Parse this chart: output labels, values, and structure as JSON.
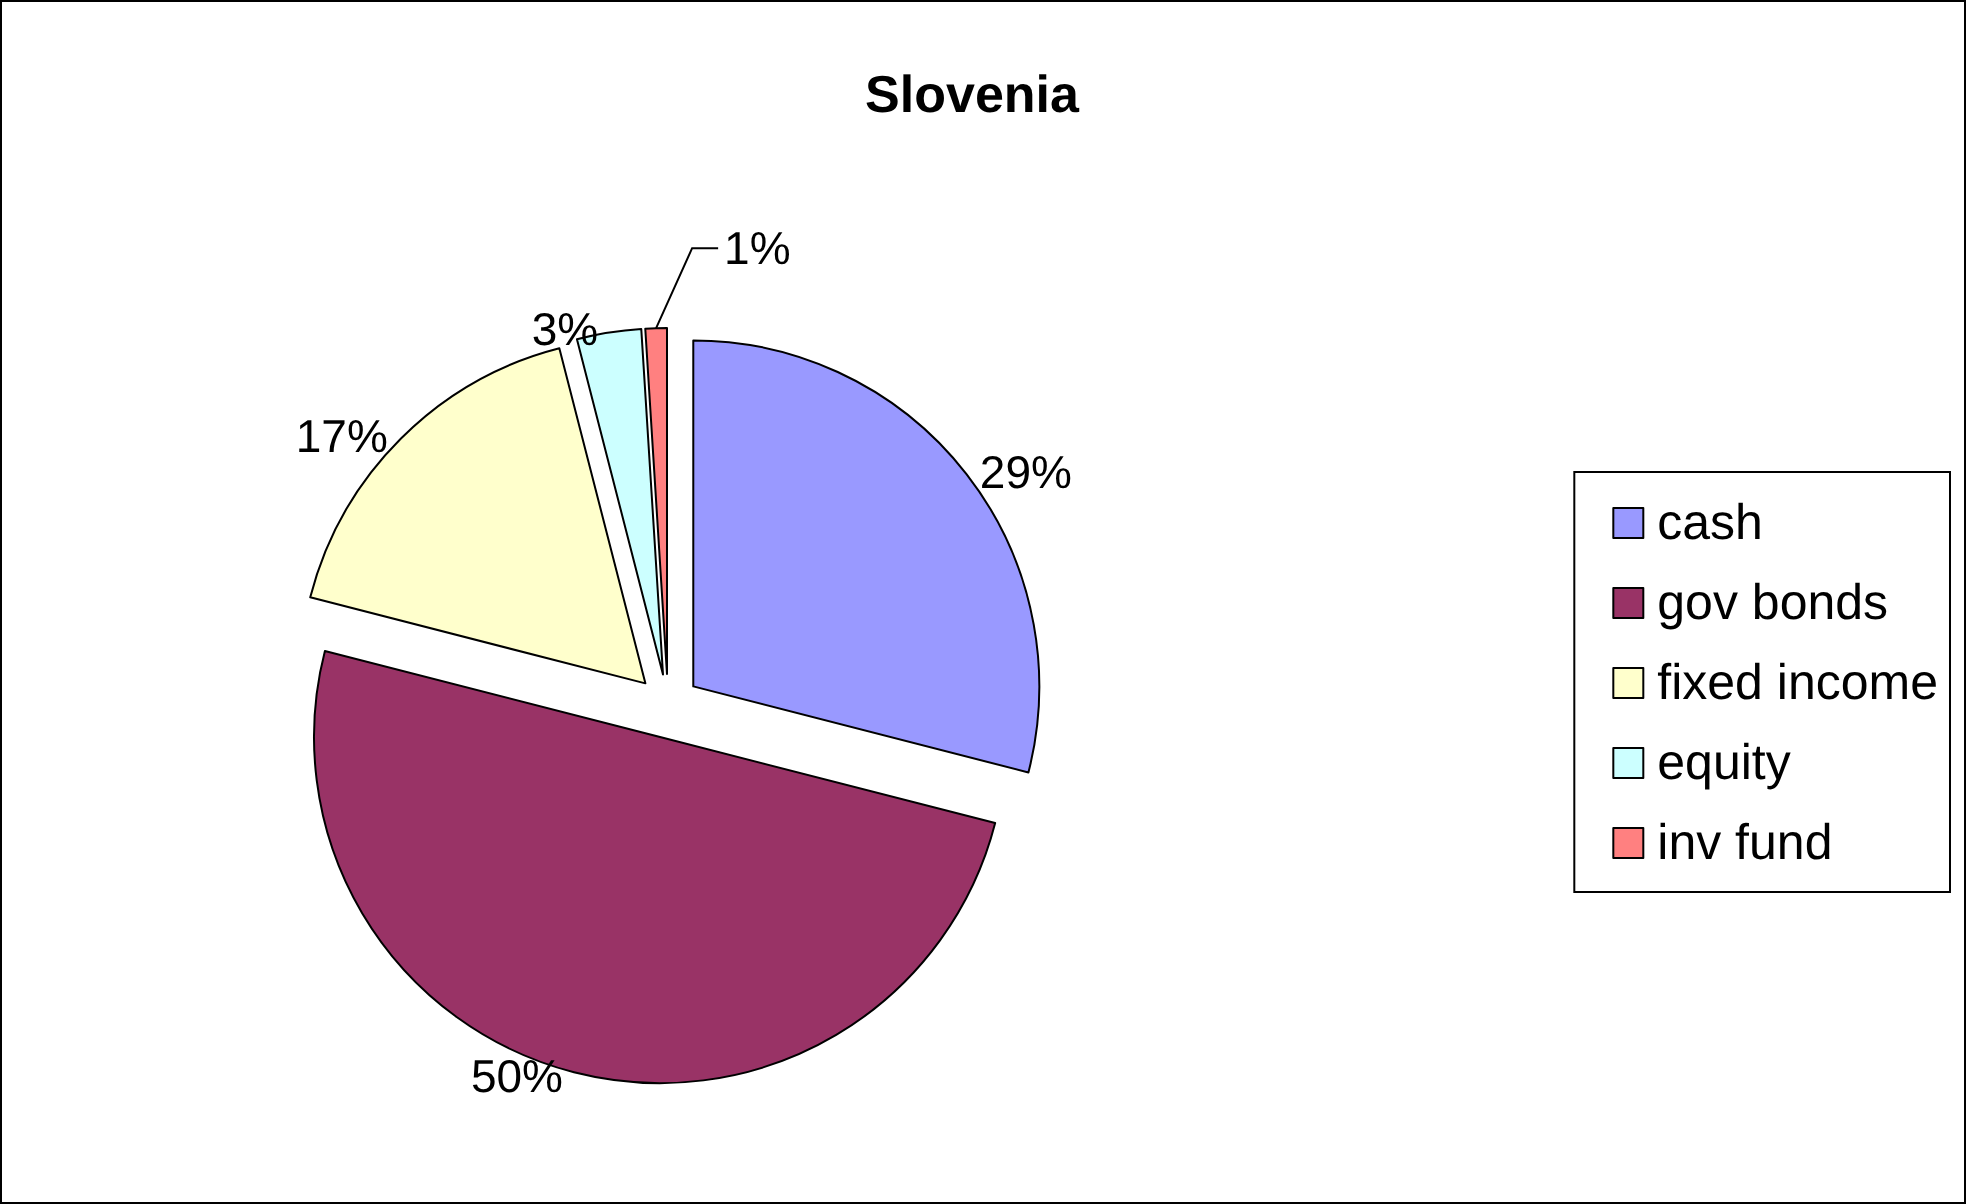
{
  "chart_data": {
    "type": "pie",
    "title": "Slovenia",
    "categories": [
      "cash",
      "gov bonds",
      "fixed income",
      "equity",
      "inv fund"
    ],
    "values": [
      29,
      50,
      17,
      3,
      1
    ],
    "value_labels": [
      "29%",
      "50%",
      "17%",
      "3%",
      "1%"
    ],
    "colors": [
      "#9999ff",
      "#993366",
      "#ffffcc",
      "#ccffff",
      "#ff8080"
    ],
    "legend": "right"
  }
}
